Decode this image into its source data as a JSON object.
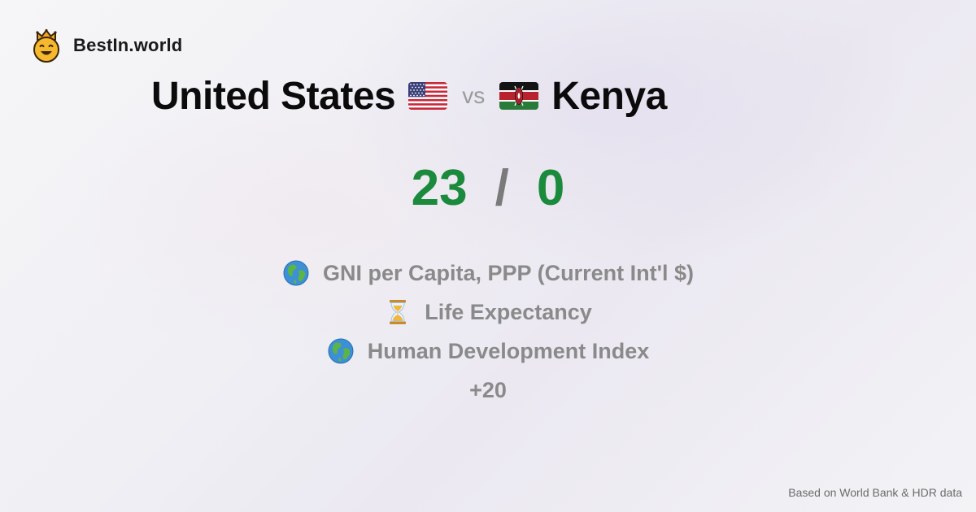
{
  "brand": {
    "name": "BestIn.world",
    "logo_icon": "crowned-smiley-icon"
  },
  "comparison": {
    "left_country": "United States",
    "left_flag": "us-flag-icon",
    "vs_label": "vs",
    "right_country": "Kenya",
    "right_flag": "kenya-flag-icon"
  },
  "score": {
    "left": "23",
    "separator": "/",
    "right": "0",
    "color": "#1c8a3c"
  },
  "metrics": [
    {
      "icon": "globe-icon",
      "label": "GNI per Capita, PPP (Current Int'l $)"
    },
    {
      "icon": "hourglass-icon",
      "label": "Life Expectancy"
    },
    {
      "icon": "globe-icon",
      "label": "Human Development Index"
    }
  ],
  "more_label": "+20",
  "footer": {
    "source": "Based on World Bank & HDR data"
  }
}
